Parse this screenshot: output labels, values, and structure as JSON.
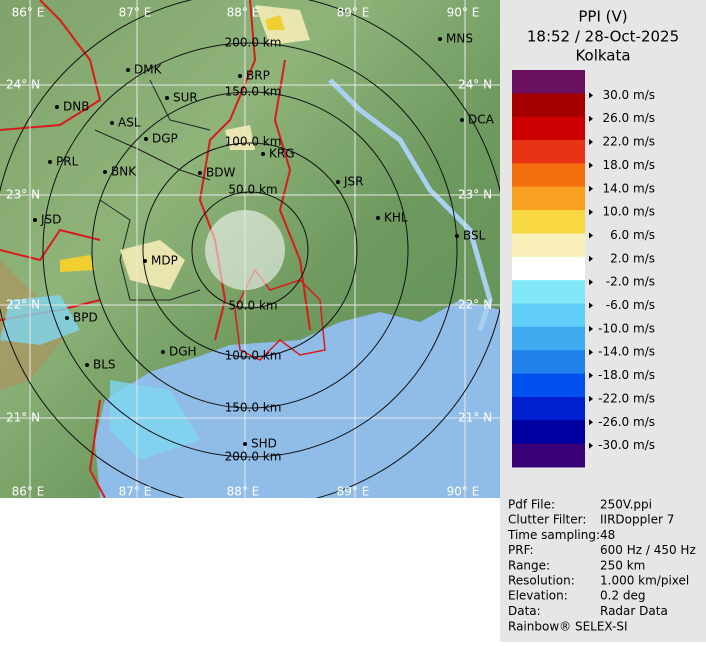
{
  "header": {
    "title": "PPI (V)",
    "time": "18:52 / 28-Oct-2025",
    "station": "Kolkata"
  },
  "legend": {
    "labels": [
      "30.0 m/s",
      "26.0 m/s",
      "22.0 m/s",
      "18.0 m/s",
      "14.0 m/s",
      "10.0 m/s",
      "6.0 m/s",
      "2.0 m/s",
      "-2.0 m/s",
      "-6.0 m/s",
      "-10.0 m/s",
      "-14.0 m/s",
      "-18.0 m/s",
      "-22.0 m/s",
      "-26.0 m/s",
      "-30.0 m/s"
    ]
  },
  "map": {
    "lon_labels": [
      "86° E",
      "87° E",
      "88° E",
      "89° E",
      "90° E"
    ],
    "lat_labels": [
      "24° N",
      "23° N",
      "22° N",
      "21° N"
    ],
    "range_labels": [
      "50.0 km",
      "100.0 km",
      "150.0 km",
      "200.0 km"
    ],
    "cities": [
      "MNS",
      "DMK",
      "BRP",
      "DNB",
      "SUR",
      "ASL",
      "DCA",
      "DGP",
      "KRG",
      "PRL",
      "BNK",
      "BDW",
      "JSR",
      "KHL",
      "JSD",
      "BSL",
      "MDP",
      "BPD",
      "DGH",
      "BLS",
      "SHD"
    ]
  },
  "info": {
    "rows": [
      [
        "Pdf File:",
        "250V.ppi"
      ],
      [
        "Clutter Filter:",
        "IIRDoppler 7"
      ],
      [
        "Time sampling:",
        "48"
      ],
      [
        "PRF:",
        "600 Hz / 450 Hz"
      ],
      [
        "Range:",
        "250 km"
      ],
      [
        "Resolution:",
        "1.000 km/pixel"
      ],
      [
        "Elevation:",
        "0.2 deg"
      ],
      [
        "Data:",
        "Radar Data"
      ]
    ],
    "footer": "Rainbow® SELEX-SI"
  }
}
